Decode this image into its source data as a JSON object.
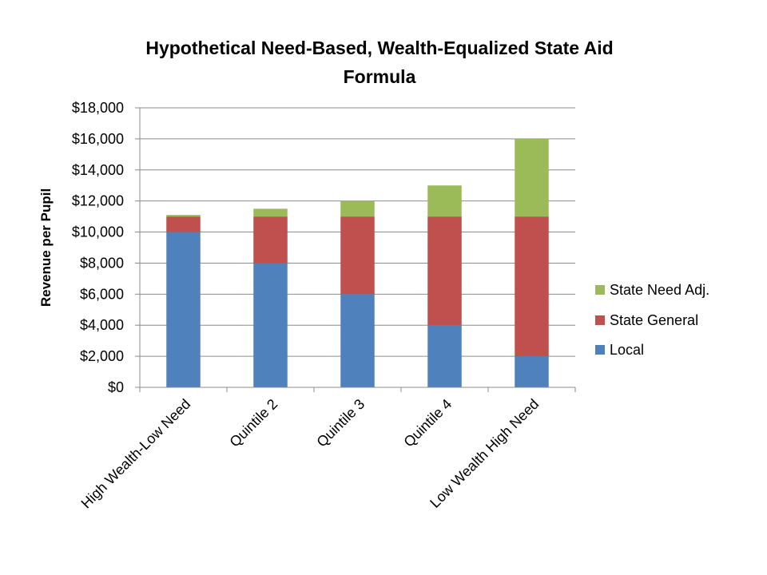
{
  "chart_data": {
    "type": "bar",
    "stacked": true,
    "title_lines": [
      "Hypothetical Need-Based, Wealth-Equalized State Aid",
      "Formula"
    ],
    "xlabel": "",
    "ylabel": "Revenue per Pupil",
    "categories": [
      "High Wealth-Low Need",
      "Quintile 2",
      "Quintile 3",
      "Quintile 4",
      "Low Wealth High Need"
    ],
    "ylim": [
      0,
      18000
    ],
    "ytick_values": [
      0,
      2000,
      4000,
      6000,
      8000,
      10000,
      12000,
      14000,
      16000,
      18000
    ],
    "ytick_labels": [
      "$0",
      "$2,000",
      "$4,000",
      "$6,000",
      "$8,000",
      "$10,000",
      "$12,000",
      "$14,000",
      "$16,000",
      "$18,000"
    ],
    "grid": true,
    "legend_position": "right",
    "series": [
      {
        "name": "Local",
        "color": "#4F81BD",
        "values": [
          10000,
          8000,
          6000,
          4000,
          2000
        ]
      },
      {
        "name": "State General",
        "color": "#C0504D",
        "values": [
          1000,
          3000,
          5000,
          7000,
          9000
        ]
      },
      {
        "name": "State Need Adj.",
        "color": "#9BBB59",
        "values": [
          100,
          500,
          1000,
          2000,
          5000
        ]
      }
    ],
    "legend_order": [
      "State Need Adj.",
      "State General",
      "Local"
    ]
  }
}
